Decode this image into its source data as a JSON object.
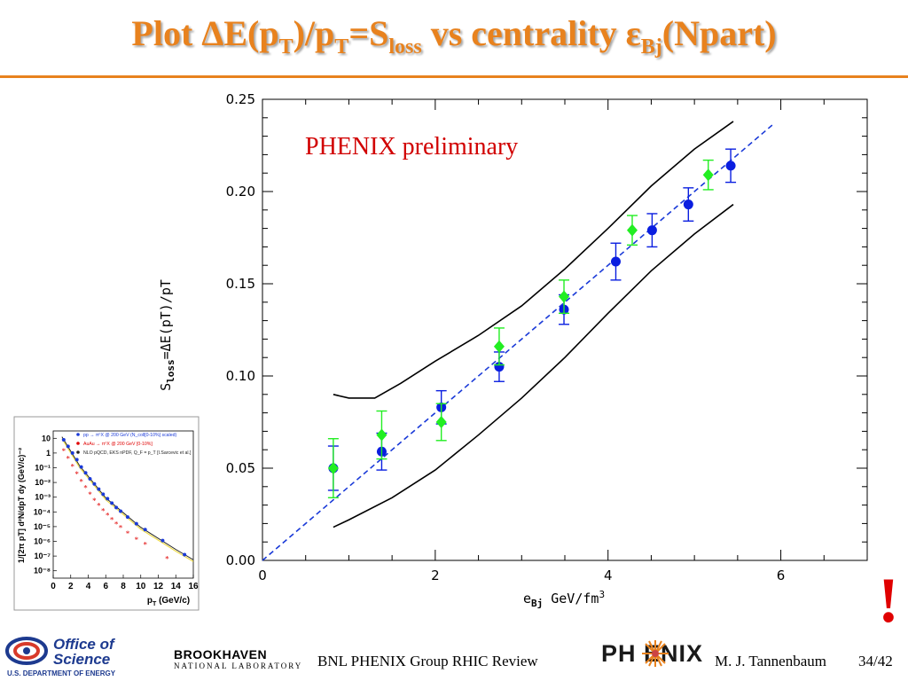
{
  "slide": {
    "title_parts": [
      "Plot ΔE(p",
      "T",
      ")/p",
      "T",
      "=S",
      "loss",
      " vs centrality ε",
      "Bj",
      "(Npart)"
    ],
    "annotation": "PHENIX preliminary",
    "exclamation": "!",
    "footer_center": "BNL PHENIX Group  RHIC Review",
    "footer_author": "M. J. Tannenbaum",
    "page": "34/42",
    "logo_doe_line1": "Office of",
    "logo_doe_line2": "Science",
    "logo_doe_line3": "U.S. DEPARTMENT OF ENERGY",
    "logo_bnl_line1": "BROOKHAVEN",
    "logo_bnl_line2": "NATIONAL LABORATORY",
    "logo_phenix": "PH   ENIX",
    "colors": {
      "accent": "#e8821e",
      "blue_points": "#0a1ee0",
      "green_points": "#22ee22",
      "fit_line": "#1a3ad8",
      "annotation": "#d10000"
    }
  },
  "chart_data": [
    {
      "type": "scatter",
      "ylabel_parts": [
        "S",
        "loss",
        "=ΔE(pT)/pT"
      ],
      "xlabel_parts": [
        "e",
        "Bj",
        "  GeV/fm",
        "3"
      ],
      "xlim": [
        0,
        7
      ],
      "ylim": [
        0.0,
        0.25
      ],
      "x_ticks": [
        "0",
        "2",
        "4",
        "6"
      ],
      "x_tick_values": [
        0,
        2,
        4,
        6
      ],
      "y_ticks": [
        "0.00",
        "0.05",
        "0.10",
        "0.15",
        "0.20",
        "0.25"
      ],
      "y_tick_values": [
        0.0,
        0.05,
        0.1,
        0.15,
        0.2,
        0.25
      ],
      "series": [
        {
          "marker": "circle",
          "color": "#0a1ee0",
          "points": [
            {
              "x": 0.82,
              "y": 0.05,
              "err": 0.012
            },
            {
              "x": 1.38,
              "y": 0.059,
              "err": 0.01
            },
            {
              "x": 2.07,
              "y": 0.083,
              "err": 0.009
            },
            {
              "x": 2.74,
              "y": 0.105,
              "err": 0.008
            },
            {
              "x": 3.49,
              "y": 0.136,
              "err": 0.008
            },
            {
              "x": 4.09,
              "y": 0.162,
              "err": 0.01
            },
            {
              "x": 4.51,
              "y": 0.179,
              "err": 0.009
            },
            {
              "x": 4.93,
              "y": 0.193,
              "err": 0.009
            },
            {
              "x": 5.42,
              "y": 0.214,
              "err": 0.009
            }
          ]
        },
        {
          "marker": "diamond",
          "color": "#22ee22",
          "points": [
            {
              "x": 0.82,
              "y": 0.05,
              "err": 0.016
            },
            {
              "x": 1.38,
              "y": 0.068,
              "err": 0.013
            },
            {
              "x": 2.07,
              "y": 0.075,
              "err": 0.01
            },
            {
              "x": 2.74,
              "y": 0.116,
              "err": 0.01
            },
            {
              "x": 3.49,
              "y": 0.143,
              "err": 0.009
            },
            {
              "x": 4.28,
              "y": 0.179,
              "err": 0.008
            },
            {
              "x": 5.16,
              "y": 0.209,
              "err": 0.008
            }
          ]
        }
      ],
      "fit_line": {
        "x": [
          0.0,
          5.9
        ],
        "y": [
          0.0,
          0.236
        ],
        "style": "dashed",
        "color": "#1a3ad8"
      },
      "band_upper": {
        "x": [
          0.82,
          1.0,
          1.3,
          1.6,
          2.0,
          2.5,
          3.0,
          3.5,
          4.0,
          4.5,
          5.0,
          5.45
        ],
        "y": [
          0.09,
          0.088,
          0.088,
          0.096,
          0.108,
          0.122,
          0.138,
          0.158,
          0.18,
          0.203,
          0.223,
          0.238
        ]
      },
      "band_lower": {
        "x": [
          0.82,
          1.0,
          1.5,
          2.0,
          2.5,
          3.0,
          3.5,
          4.0,
          4.5,
          5.0,
          5.45
        ],
        "y": [
          0.018,
          0.022,
          0.034,
          0.049,
          0.068,
          0.088,
          0.11,
          0.134,
          0.157,
          0.177,
          0.193
        ]
      }
    },
    {
      "type": "scatter",
      "inset": true,
      "xlabel_parts": [
        "p",
        "T",
        " (GeV/c)"
      ],
      "ylabel_text": "1/[2π pT] d²N/dpT dy (GeV/c)⁻²",
      "x_ticks": [
        "0",
        "2",
        "4",
        "6",
        "8",
        "10",
        "12",
        "14",
        "16"
      ],
      "y_ticks": [
        "10",
        "1",
        "10⁻¹",
        "10⁻²",
        "10⁻³",
        "10⁻⁴",
        "10⁻⁵",
        "10⁻⁶",
        "10⁻⁷",
        "10⁻⁸"
      ],
      "xlim": [
        0,
        16
      ],
      "ylog_range": [
        -8.5,
        1.5
      ],
      "legend": [
        {
          "label": "pp → π⁰X @ 200 GeV (N_coll[0-10%] scaled)",
          "color": "#1a3ad8"
        },
        {
          "label": "AuAu → π⁰X @ 200 GeV [0-10%]",
          "color": "#e00000"
        },
        {
          "label": "NLO pQCD, EKS nPDF, Q_F = p_T [I.Sarcevic et al.]",
          "color": "#222222"
        }
      ],
      "series": [
        {
          "name": "pp",
          "color": "#1a3ad8",
          "marker": "circle",
          "x": [
            1.2,
            1.7,
            2.2,
            2.7,
            3.2,
            3.7,
            4.2,
            4.7,
            5.2,
            5.7,
            6.2,
            6.7,
            7.2,
            7.7,
            8.5,
            9.5,
            10.5,
            12.5,
            15.0
          ],
          "log10y": [
            0.9,
            0.45,
            0.0,
            -0.45,
            -0.95,
            -1.35,
            -1.75,
            -2.1,
            -2.45,
            -2.8,
            -3.1,
            -3.4,
            -3.7,
            -3.95,
            -4.35,
            -4.8,
            -5.2,
            -5.95,
            -6.9
          ]
        },
        {
          "name": "AuAu",
          "color": "#e00000",
          "marker": "star",
          "x": [
            1.2,
            1.7,
            2.2,
            2.7,
            3.2,
            3.7,
            4.2,
            4.7,
            5.2,
            5.7,
            6.2,
            6.7,
            7.2,
            7.7,
            8.5,
            9.5,
            10.5,
            13.0
          ],
          "log10y": [
            0.1,
            -0.4,
            -0.95,
            -1.45,
            -1.95,
            -2.4,
            -2.85,
            -3.25,
            -3.6,
            -3.95,
            -4.25,
            -4.55,
            -4.85,
            -5.1,
            -5.5,
            -5.9,
            -6.25,
            -7.2
          ]
        }
      ],
      "curve": {
        "color": "#222222",
        "x": [
          1.0,
          3.0,
          6.0,
          10.0,
          14.0,
          16.0
        ],
        "log10y": [
          1.1,
          -0.85,
          -3.05,
          -5.05,
          -6.55,
          -7.25
        ]
      }
    }
  ]
}
